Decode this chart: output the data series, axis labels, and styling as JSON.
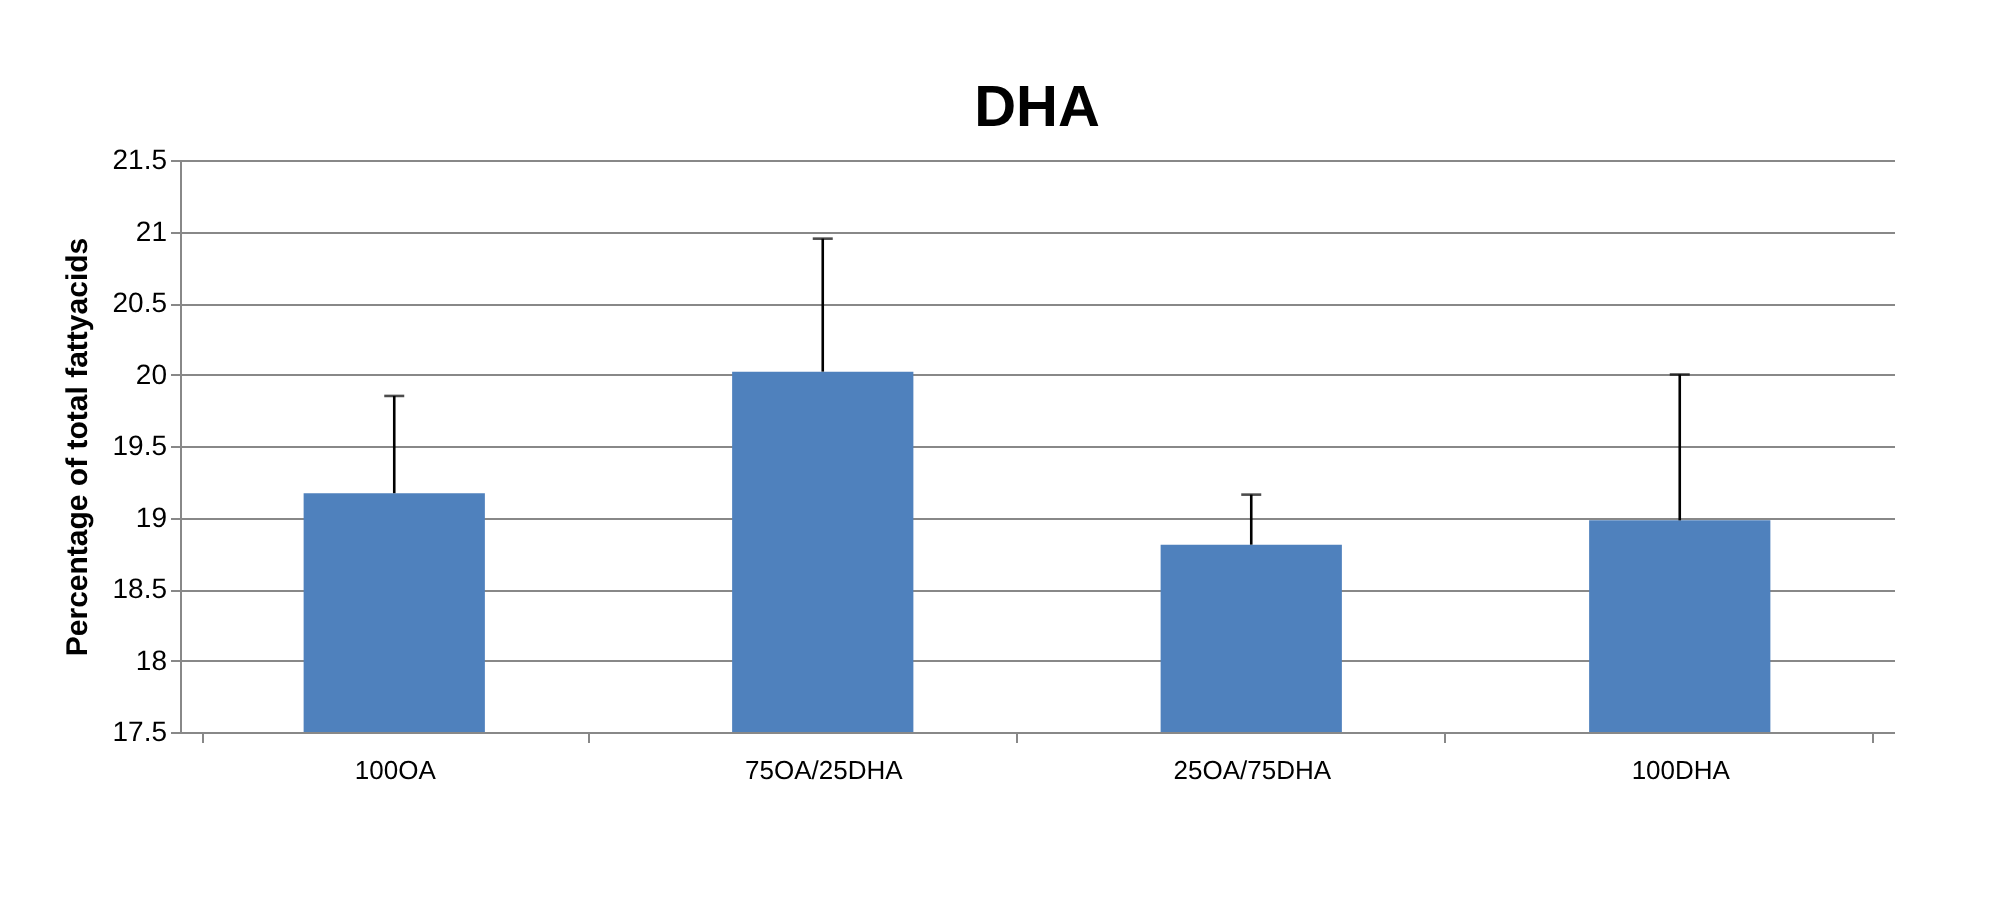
{
  "chart_data": {
    "type": "bar",
    "title": "DHA",
    "ylabel": "Percentage of total fattyacids",
    "categories": [
      "100OA",
      "75OA/25DHA",
      "25OA/75DHA",
      "100DHA"
    ],
    "values": [
      19.17,
      20.02,
      18.81,
      18.98
    ],
    "errors": [
      [
        19.17,
        19.85
      ],
      [
        20.02,
        20.95
      ],
      [
        18.81,
        19.16
      ],
      [
        18.98,
        20.0
      ]
    ],
    "color": "#4f81bd",
    "ylim": [
      17.5,
      21.5
    ],
    "yticks": [
      17.5,
      18,
      18.5,
      19,
      19.5,
      20,
      20.5,
      21,
      21.5
    ],
    "grid": "y"
  }
}
